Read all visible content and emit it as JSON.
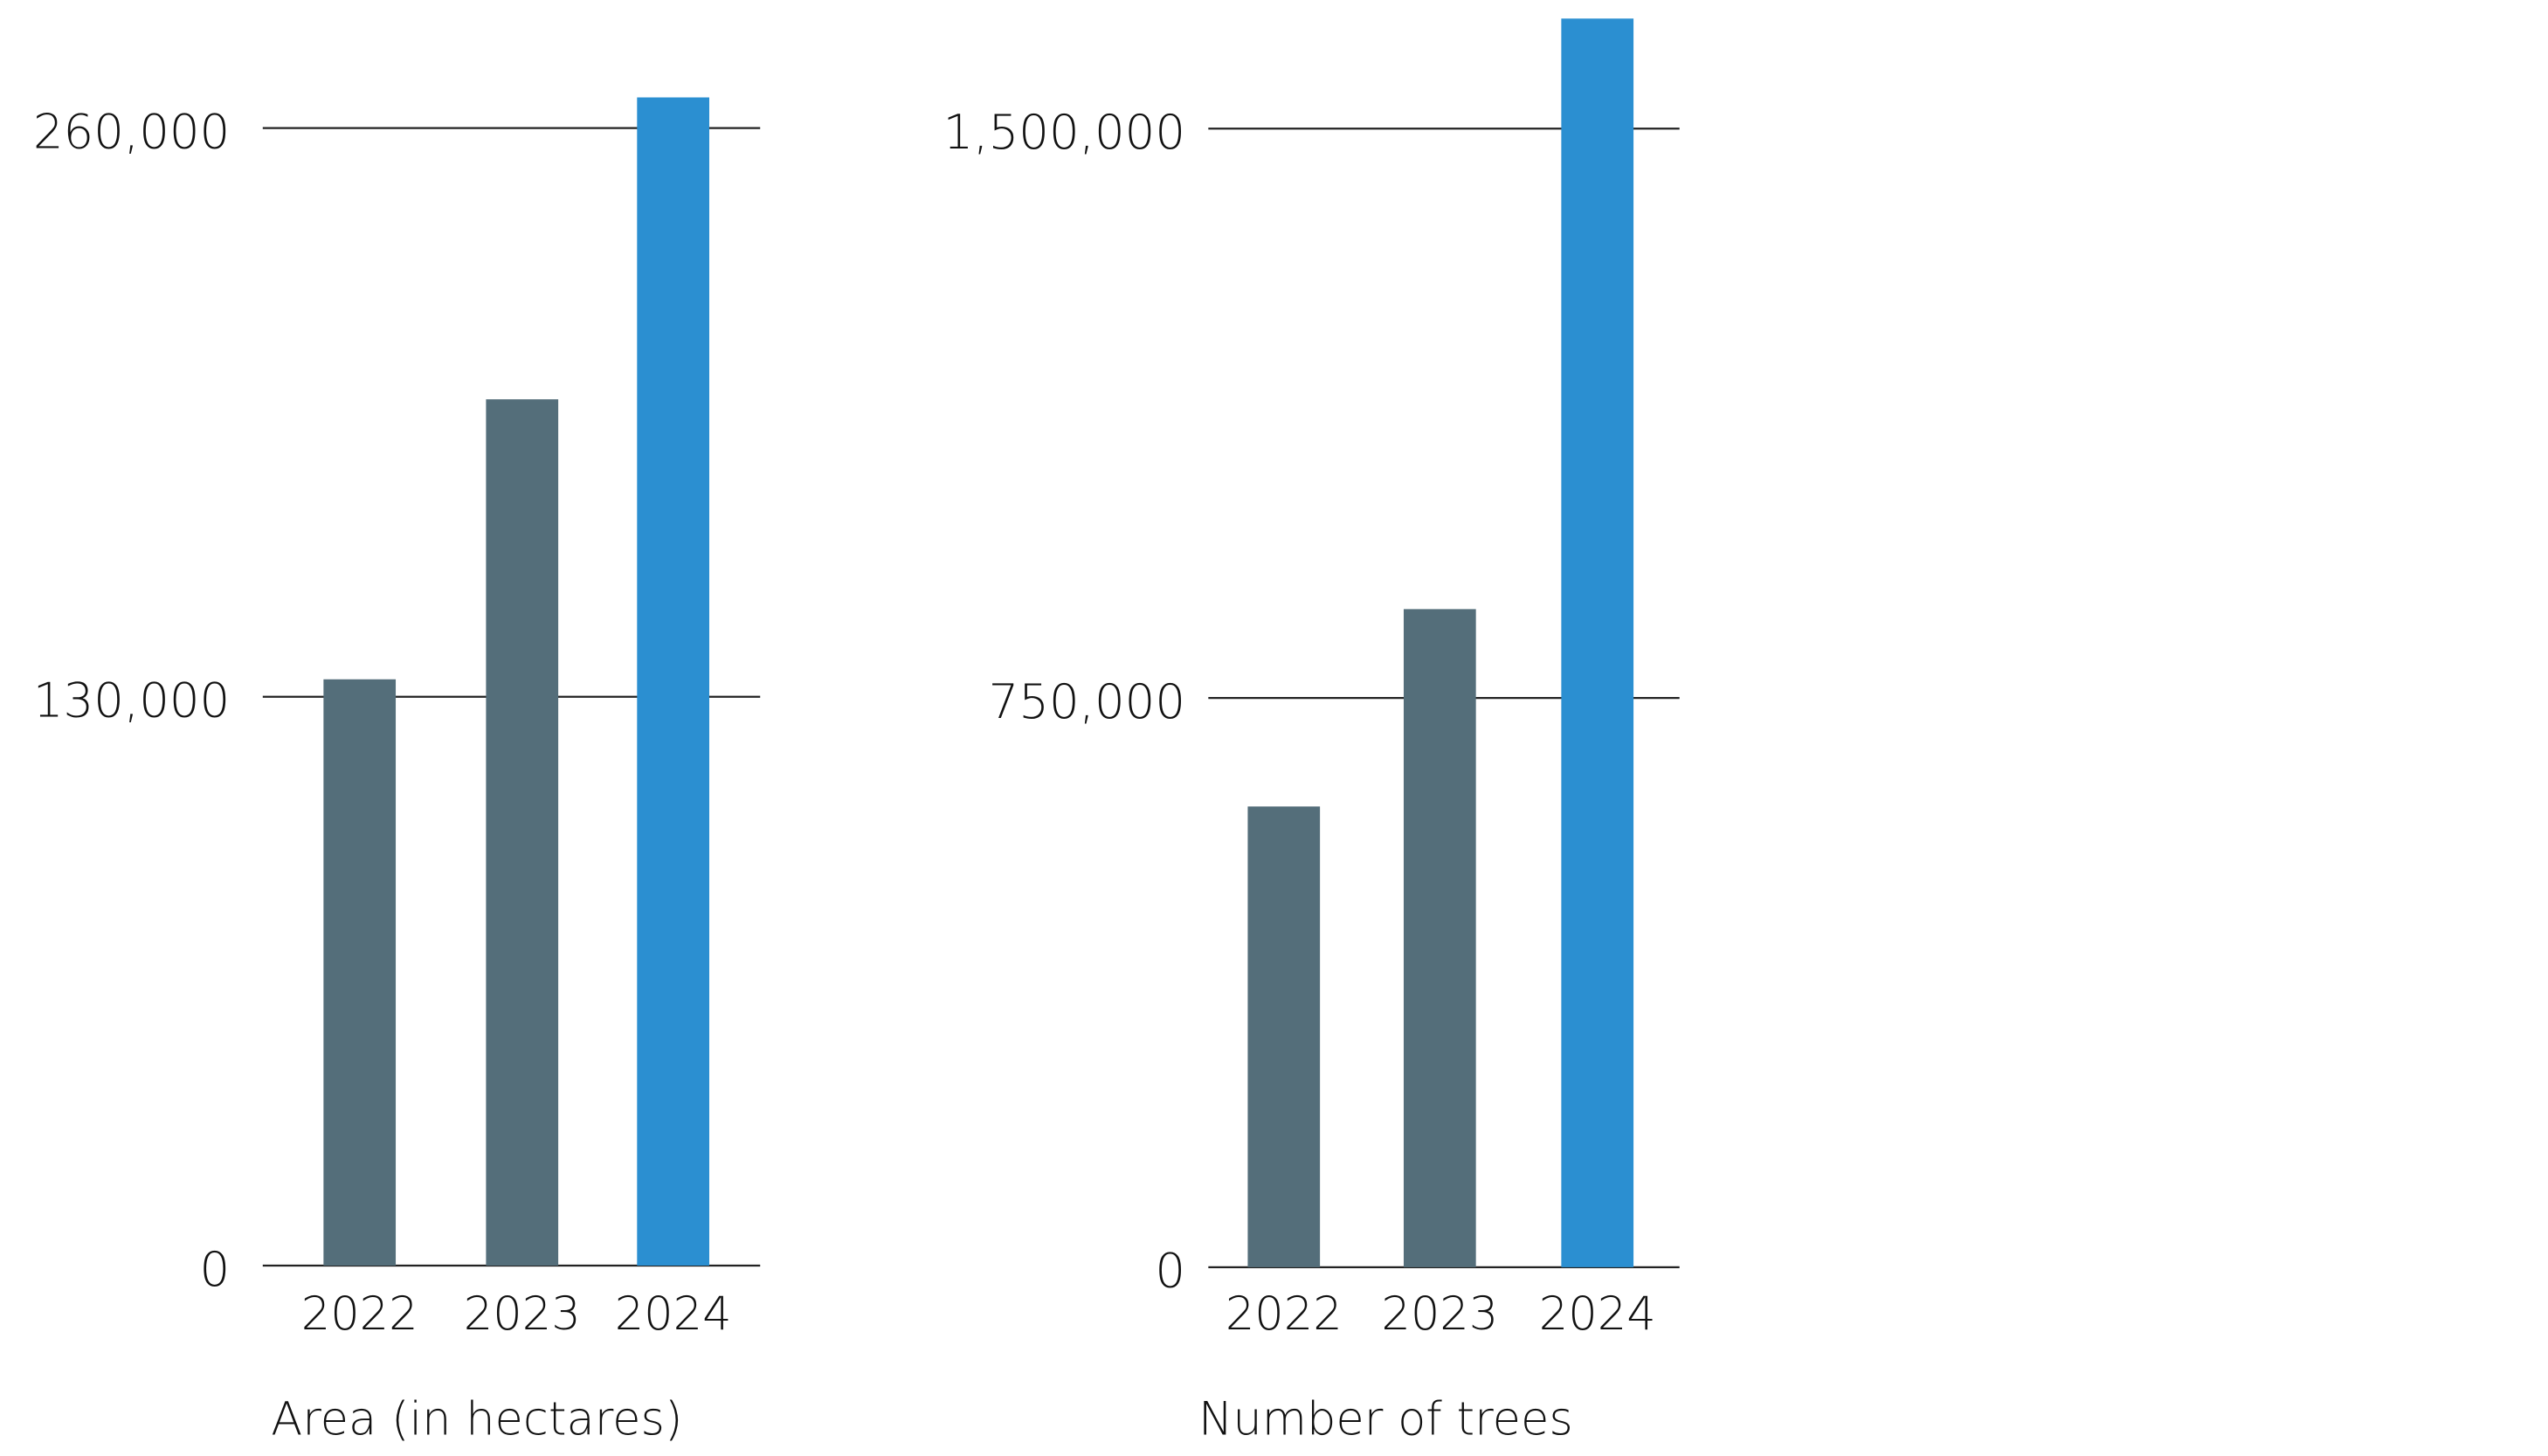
{
  "chart_data": [
    {
      "type": "bar",
      "x_label": "Area (in hectares)",
      "categories": [
        "2022",
        "2023",
        "2024"
      ],
      "values": [
        134000,
        198000,
        267000
      ],
      "colors": [
        "#546e7a",
        "#546e7a",
        "#2b8fd1"
      ],
      "ylim": [
        0,
        280000
      ],
      "yticks": [
        {
          "value": 0,
          "label": "0"
        },
        {
          "value": 130000,
          "label": "130,000"
        },
        {
          "value": 260000,
          "label": "260,000"
        }
      ],
      "grid": true
    },
    {
      "type": "bar",
      "x_label": "Number of trees",
      "categories": [
        "2022",
        "2023",
        "2024"
      ],
      "values": [
        607000,
        867000,
        1645000
      ],
      "colors": [
        "#546e7a",
        "#546e7a",
        "#2b8fd1"
      ],
      "ylim": [
        0,
        1650000
      ],
      "yticks": [
        {
          "value": 0,
          "label": "0"
        },
        {
          "value": 750000,
          "label": "750,000"
        },
        {
          "value": 1500000,
          "label": "1,500,000"
        }
      ],
      "grid": true
    }
  ]
}
